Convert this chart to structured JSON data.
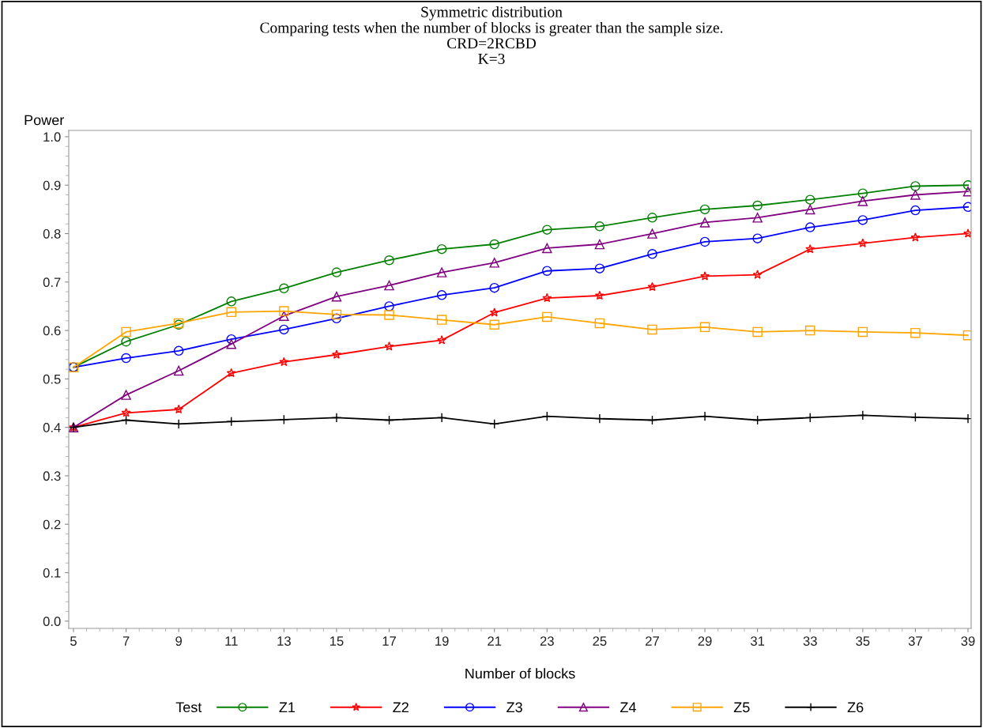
{
  "chart_data": {
    "type": "line",
    "title": "Symmetric distribution\nComparing tests when the number of blocks is greater than the sample size.\nCRD=2RCBD\nK=3",
    "xlabel": "Number of blocks",
    "ylabel": "Power",
    "legend_title": "Test",
    "x": [
      5,
      7,
      9,
      11,
      13,
      15,
      17,
      19,
      21,
      23,
      25,
      27,
      29,
      31,
      33,
      35,
      37,
      39
    ],
    "series": [
      {
        "name": "Z1",
        "color": "#008000",
        "marker": "circle",
        "values": [
          0.524,
          0.577,
          0.612,
          0.66,
          0.687,
          0.72,
          0.745,
          0.768,
          0.778,
          0.808,
          0.815,
          0.833,
          0.85,
          0.858,
          0.87,
          0.883,
          0.898,
          0.9
        ]
      },
      {
        "name": "Z2",
        "color": "#ff0000",
        "marker": "star",
        "values": [
          0.4,
          0.43,
          0.437,
          0.512,
          0.535,
          0.55,
          0.567,
          0.58,
          0.637,
          0.667,
          0.672,
          0.69,
          0.712,
          0.715,
          0.768,
          0.78,
          0.792,
          0.8
        ]
      },
      {
        "name": "Z3",
        "color": "#0000ff",
        "marker": "circle",
        "values": [
          0.524,
          0.543,
          0.558,
          0.582,
          0.602,
          0.625,
          0.65,
          0.673,
          0.688,
          0.723,
          0.728,
          0.758,
          0.783,
          0.79,
          0.813,
          0.828,
          0.848,
          0.855
        ]
      },
      {
        "name": "Z4",
        "color": "#800080",
        "marker": "triangle",
        "values": [
          0.4,
          0.467,
          0.517,
          0.572,
          0.63,
          0.67,
          0.693,
          0.72,
          0.74,
          0.77,
          0.778,
          0.8,
          0.823,
          0.833,
          0.85,
          0.867,
          0.88,
          0.887
        ]
      },
      {
        "name": "Z5",
        "color": "#ffa500",
        "marker": "square",
        "values": [
          0.524,
          0.597,
          0.615,
          0.638,
          0.64,
          0.633,
          0.632,
          0.622,
          0.612,
          0.628,
          0.615,
          0.602,
          0.607,
          0.597,
          0.6,
          0.597,
          0.595,
          0.59
        ]
      },
      {
        "name": "Z6",
        "color": "#000000",
        "marker": "cross",
        "values": [
          0.4,
          0.415,
          0.407,
          0.412,
          0.416,
          0.42,
          0.415,
          0.42,
          0.407,
          0.423,
          0.418,
          0.415,
          0.423,
          0.415,
          0.42,
          0.425,
          0.421,
          0.418
        ]
      }
    ],
    "xlim": [
      4.82,
      39.12
    ],
    "xticks": [
      5,
      7,
      9,
      11,
      13,
      15,
      17,
      19,
      21,
      23,
      25,
      27,
      29,
      31,
      33,
      35,
      37,
      39
    ],
    "ylim": [
      -0.015,
      1.013
    ],
    "yticks": [
      {
        "value": 0,
        "label": "0.0"
      },
      0.1,
      0.2,
      0.3,
      0.4,
      0.5,
      0.6,
      0.7,
      0.8,
      0.9,
      {
        "value": 1,
        "label": "1.0"
      }
    ],
    "grid": false,
    "legend": "bottom",
    "line_style": "solid"
  }
}
